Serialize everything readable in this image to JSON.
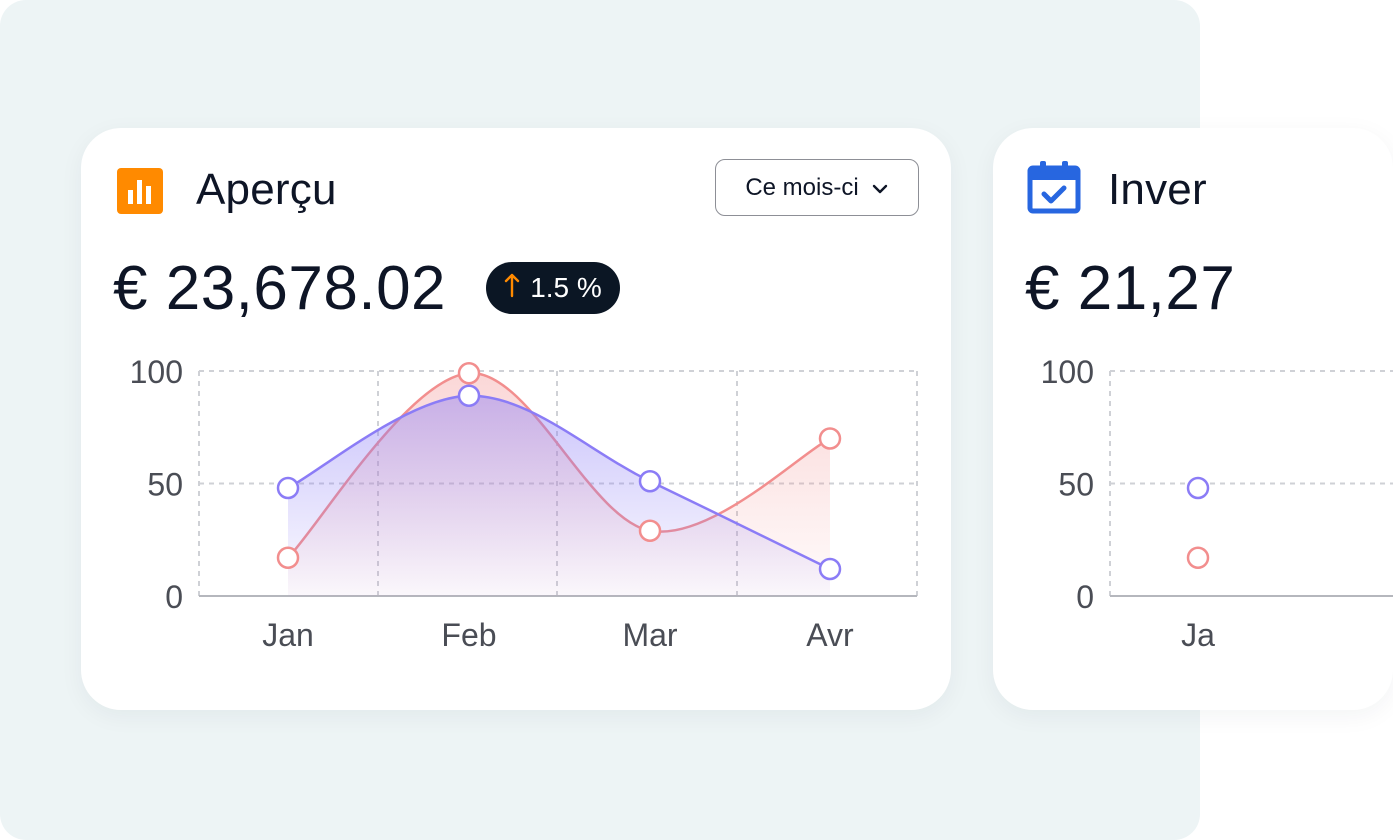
{
  "cards": [
    {
      "title": "Aperçu",
      "icon": "bar-chart-icon",
      "accent": "#ff8a00",
      "period_label": "Ce mois-ci",
      "amount": "€ 23,678.02",
      "change": "1.5 %",
      "change_color": "#ff8a00",
      "chart_data": {
        "type": "area",
        "categories": [
          "Jan",
          "Feb",
          "Mar",
          "Avr"
        ],
        "ylim": [
          0,
          100
        ],
        "yticks": [
          "0",
          "50",
          "100"
        ],
        "grid": true,
        "series": [
          {
            "values": [
              48,
              89,
              51,
              12
            ],
            "color": "#8b7cf6"
          },
          {
            "values": [
              17,
              99,
              29,
              70
            ],
            "color": "#f28e8e"
          }
        ]
      }
    },
    {
      "title": "Inver",
      "icon": "calendar-check-icon",
      "accent": "#2766e0",
      "amount": "€ 21,27",
      "chart_data": {
        "type": "line",
        "categories": [
          "Ja"
        ],
        "ylim": [
          0,
          100
        ],
        "yticks": [
          "0",
          "50",
          "100"
        ],
        "grid": true,
        "series": [
          {
            "values": [
              48
            ],
            "color": "#8b7cf6"
          },
          {
            "values": [
              17
            ],
            "color": "#f28e8e"
          }
        ]
      }
    }
  ]
}
